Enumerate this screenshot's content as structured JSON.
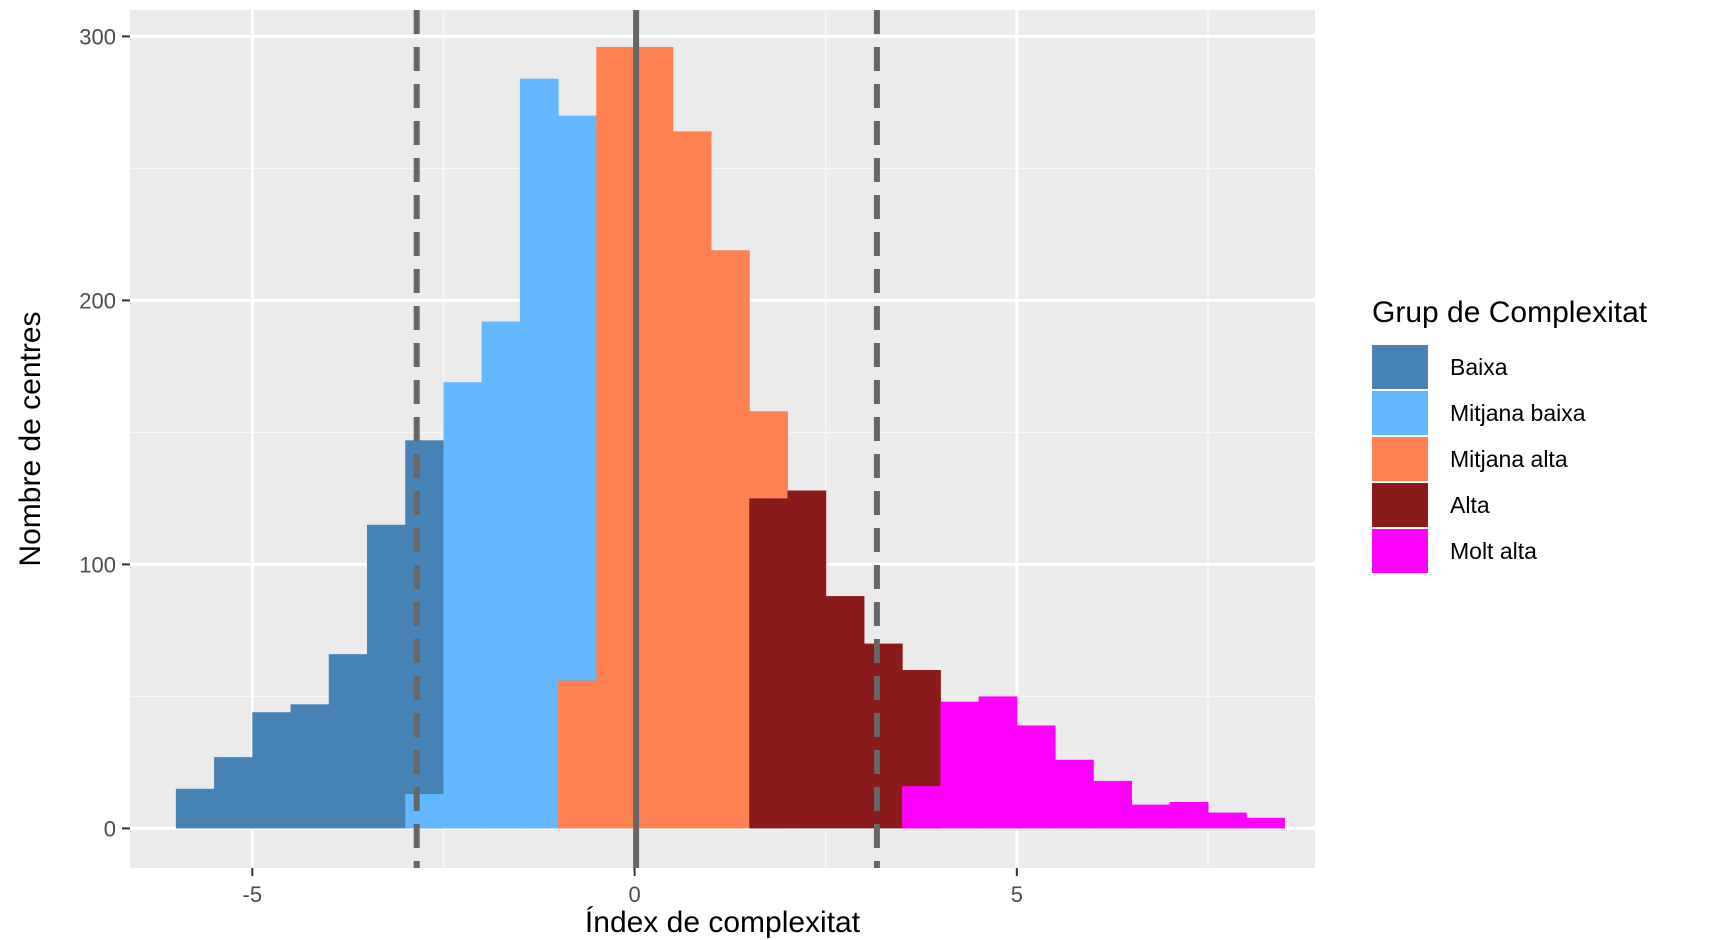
{
  "chart_data": {
    "type": "histogram",
    "title": "",
    "xlabel": "Índex de complexitat",
    "ylabel": "Nombre de centres",
    "xlim": [
      -6.6,
      8.9
    ],
    "ylim": [
      -15,
      310
    ],
    "x_ticks": [
      -5,
      0,
      5
    ],
    "y_ticks": [
      0,
      100,
      200,
      300
    ],
    "bin_width": 0.5,
    "grid": true,
    "legend_position": "right",
    "legend": {
      "title": "Grup de Complexitat",
      "entries": [
        {
          "label": "Baixa",
          "color": "#4682b4"
        },
        {
          "label": "Mitjana baixa",
          "color": "#63b8ff"
        },
        {
          "label": "Mitjana alta",
          "color": "#ff8050"
        },
        {
          "label": "Alta",
          "color": "#8b1a1a"
        },
        {
          "label": "Molt alta",
          "color": "#ff00ff"
        }
      ]
    },
    "series": [
      {
        "name": "Baixa",
        "color": "#4682b4",
        "bins": [
          [
            -5.75,
            15
          ],
          [
            -5.25,
            27
          ],
          [
            -4.75,
            44
          ],
          [
            -4.25,
            47
          ],
          [
            -3.75,
            66
          ],
          [
            -3.25,
            115
          ],
          [
            -2.75,
            147
          ]
        ]
      },
      {
        "name": "Mitjana baixa",
        "color": "#63b8ff",
        "bins": [
          [
            -2.75,
            13
          ],
          [
            -2.25,
            169
          ],
          [
            -1.75,
            192
          ],
          [
            -1.25,
            284
          ],
          [
            -0.75,
            270
          ],
          [
            -0.25,
            270
          ]
        ]
      },
      {
        "name": "Mitjana alta",
        "color": "#ff8050",
        "bins": [
          [
            -0.75,
            56
          ],
          [
            -0.25,
            296
          ],
          [
            0.25,
            296
          ],
          [
            0.75,
            264
          ],
          [
            1.25,
            219
          ],
          [
            1.75,
            158
          ]
        ]
      },
      {
        "name": "Alta",
        "color": "#8b1a1a",
        "bins": [
          [
            1.75,
            125
          ],
          [
            2.25,
            128
          ],
          [
            2.75,
            88
          ],
          [
            3.25,
            70
          ],
          [
            3.75,
            60
          ]
        ]
      },
      {
        "name": "Molt alta",
        "color": "#ff00ff",
        "bins": [
          [
            3.75,
            16
          ],
          [
            4.25,
            48
          ],
          [
            4.75,
            50
          ],
          [
            5.25,
            39
          ],
          [
            5.75,
            26
          ],
          [
            6.25,
            18
          ],
          [
            6.75,
            9
          ],
          [
            7.25,
            10
          ],
          [
            7.75,
            6
          ],
          [
            8.25,
            4
          ]
        ]
      }
    ],
    "vlines": [
      {
        "x": 0.02,
        "style": "solid",
        "color": "#666666"
      },
      {
        "x": -2.85,
        "style": "dashed",
        "color": "#666666"
      },
      {
        "x": 3.17,
        "style": "dashed",
        "color": "#666666"
      }
    ]
  }
}
